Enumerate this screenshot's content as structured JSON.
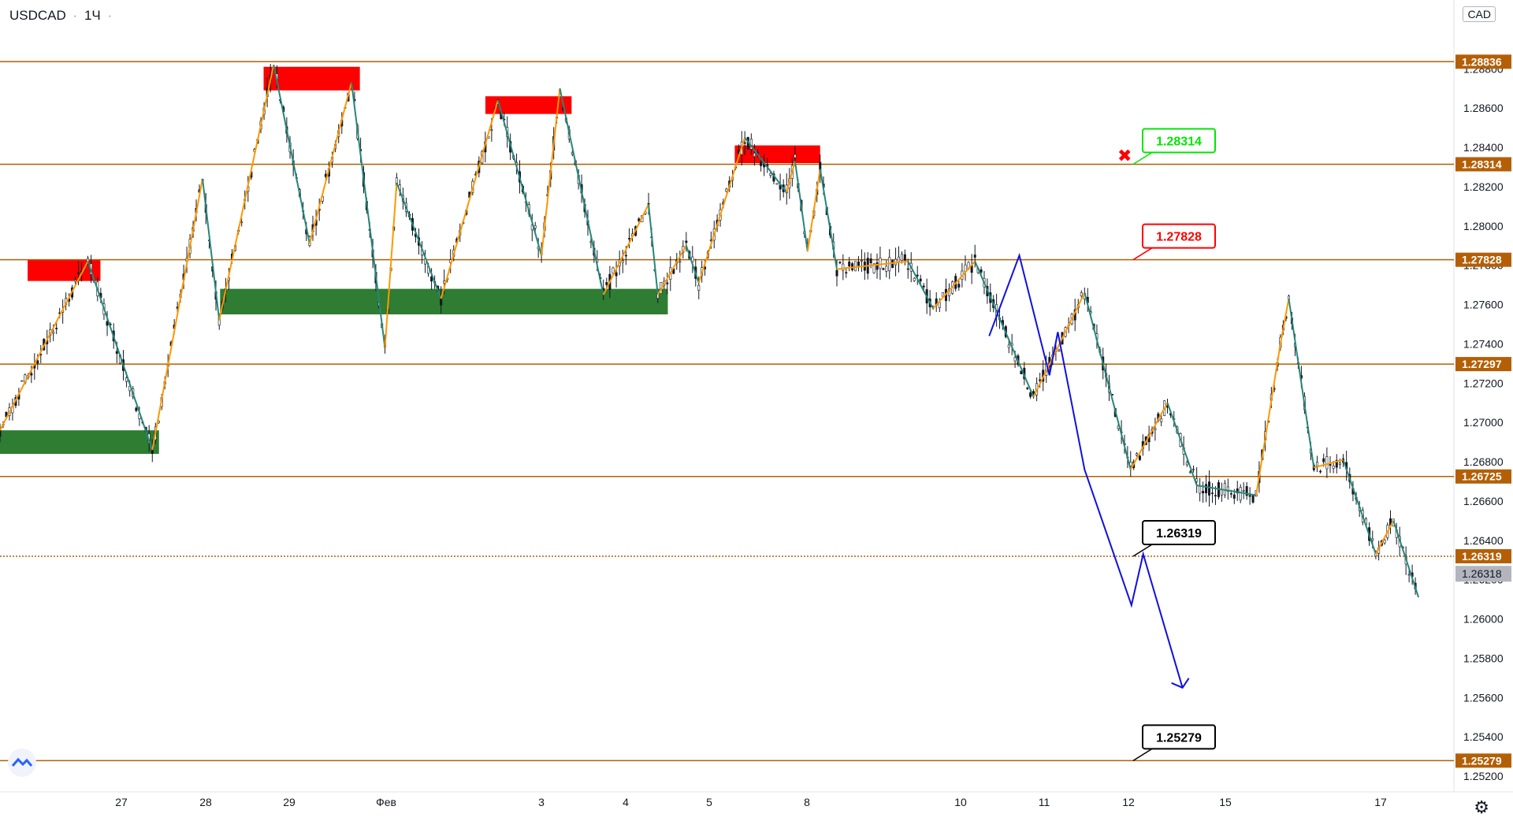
{
  "header": {
    "symbol": "USDCAD",
    "interval": "1Ч",
    "extra": "·"
  },
  "currency": "CAD",
  "colors": {
    "level_line": "#b45f06",
    "supply_zone": "#ff0000",
    "demand_zone": "#2e7d32",
    "zigzag_up": "#ff9800",
    "zigzag_down": "#26867a",
    "forecast": "#1010e0",
    "label_green": "#00e600",
    "label_red": "#ff0000",
    "label_black": "#000000",
    "current_price_bg": "#b2b5be",
    "candle": "#131722"
  },
  "chart_data": {
    "type": "candlestick",
    "x_labels": [
      "27",
      "28",
      "29",
      "Фев",
      "3",
      "4",
      "5",
      "8",
      "10",
      "11",
      "12",
      "15",
      "17"
    ],
    "y_axis_ticks": [
      "1.25200",
      "1.25400",
      "1.25600",
      "1.25800",
      "1.26000",
      "1.26200",
      "1.26400",
      "1.26600",
      "1.26800",
      "1.27000",
      "1.27200",
      "1.27400",
      "1.27600",
      "1.27800",
      "1.28000",
      "1.28200",
      "1.28400",
      "1.28600",
      "1.28800"
    ],
    "ylim": [
      1.2512,
      1.2915
    ],
    "levels": [
      {
        "value": 1.28836,
        "label": "1.28836",
        "style": "solid"
      },
      {
        "value": 1.28314,
        "label": "1.28314",
        "style": "solid"
      },
      {
        "value": 1.27828,
        "label": "1.27828",
        "style": "solid"
      },
      {
        "value": 1.27297,
        "label": "1.27297",
        "style": "solid"
      },
      {
        "value": 1.26725,
        "label": "1.26725",
        "style": "solid"
      },
      {
        "value": 1.26319,
        "label": "1.26319",
        "style": "dotted"
      },
      {
        "value": 1.25279,
        "label": "1.25279",
        "style": "solid"
      }
    ],
    "current_price": {
      "value": 1.26318,
      "label": "1.26318"
    },
    "callouts": [
      {
        "value": 1.28314,
        "label": "1.28314",
        "color": "green"
      },
      {
        "value": 1.27828,
        "label": "1.27828",
        "color": "red"
      },
      {
        "value": 1.26319,
        "label": "1.26319",
        "color": "black"
      },
      {
        "value": 1.25279,
        "label": "1.25279",
        "color": "black"
      }
    ],
    "stop_marker": {
      "symbol": "✖",
      "value": 1.2836
    },
    "zones": [
      {
        "kind": "supply",
        "x0": 0.033,
        "x1": 0.12,
        "y0": 1.2772,
        "y1": 1.2783
      },
      {
        "kind": "supply",
        "x0": 0.315,
        "x1": 0.43,
        "y0": 1.2869,
        "y1": 1.2881
      },
      {
        "kind": "supply",
        "x0": 0.58,
        "x1": 0.683,
        "y0": 1.2857,
        "y1": 1.2866
      },
      {
        "kind": "supply",
        "x0": 0.878,
        "x1": 0.98,
        "y0": 1.2832,
        "y1": 1.2841
      },
      {
        "kind": "demand",
        "x0": 0.0,
        "x1": 0.19,
        "y0": 1.2684,
        "y1": 1.2696
      },
      {
        "kind": "demand",
        "x0": 0.263,
        "x1": 0.798,
        "y0": 1.2755,
        "y1": 1.2768
      }
    ],
    "zigzag": [
      [
        0.0,
        1.2696
      ],
      [
        0.105,
        1.2782
      ],
      [
        0.182,
        1.2686
      ],
      [
        0.242,
        1.2824
      ],
      [
        0.262,
        1.2752
      ],
      [
        0.327,
        1.2882
      ],
      [
        0.37,
        1.2791
      ],
      [
        0.42,
        1.2873
      ],
      [
        0.46,
        1.2738
      ],
      [
        0.474,
        1.2822
      ],
      [
        0.527,
        1.2763
      ],
      [
        0.595,
        1.2864
      ],
      [
        0.647,
        1.2785
      ],
      [
        0.669,
        1.287
      ],
      [
        0.721,
        1.2765
      ],
      [
        0.775,
        1.2811
      ],
      [
        0.786,
        1.2765
      ],
      [
        0.82,
        1.279
      ],
      [
        0.835,
        1.2771
      ],
      [
        0.89,
        1.2845
      ],
      [
        0.94,
        1.2817
      ],
      [
        0.95,
        1.2833
      ],
      [
        0.965,
        1.2787
      ],
      [
        0.98,
        1.2829
      ],
      [
        1.0,
        1.2778
      ],
      [
        1.085,
        1.2782
      ],
      [
        1.115,
        1.2758
      ],
      [
        1.165,
        1.2782
      ],
      [
        1.235,
        1.2713
      ],
      [
        1.296,
        1.2766
      ],
      [
        1.351,
        1.2676
      ],
      [
        1.395,
        1.271
      ],
      [
        1.43,
        1.2668
      ],
      [
        1.501,
        1.2663
      ],
      [
        1.53,
        1.274
      ],
      [
        1.54,
        1.2763
      ],
      [
        1.57,
        1.2677
      ],
      [
        1.605,
        1.2681
      ],
      [
        1.644,
        1.2633
      ],
      [
        1.665,
        1.265
      ],
      [
        1.695,
        1.2611
      ]
    ],
    "forecast_path": [
      [
        1.182,
        1.2744
      ],
      [
        1.218,
        1.2785
      ],
      [
        1.254,
        1.2724
      ],
      [
        1.264,
        1.2746
      ],
      [
        1.296,
        1.2676
      ],
      [
        1.352,
        1.2607
      ],
      [
        1.366,
        1.2633
      ],
      [
        1.413,
        1.2565
      ]
    ]
  }
}
